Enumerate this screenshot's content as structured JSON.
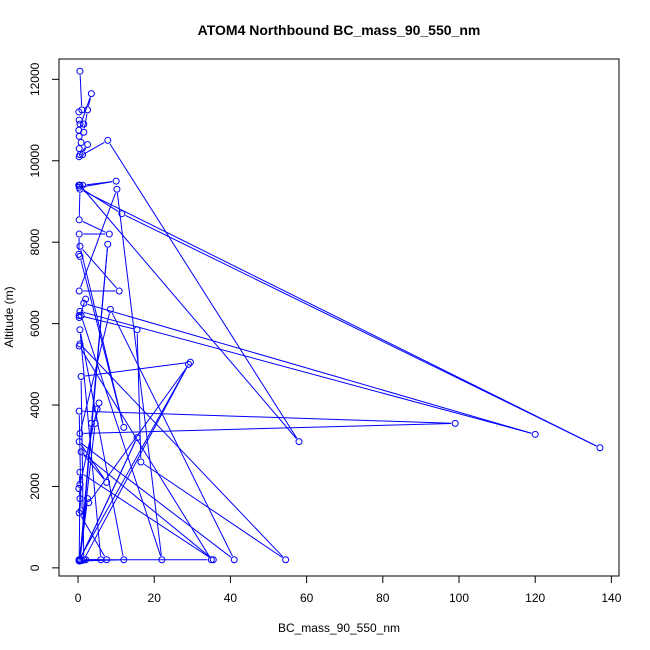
{
  "chart_data": {
    "type": "line",
    "title": "ATOM4 Northbound BC_mass_90_550_nm",
    "xlabel": "BC_mass_90_550_nm",
    "ylabel": "Altitude (m)",
    "xlim": [
      -5,
      142
    ],
    "ylim": [
      -200,
      12500
    ],
    "xticks": [
      "0",
      "20",
      "40",
      "60",
      "80",
      "100",
      "120",
      "140"
    ],
    "yticks": [
      "0",
      "2000",
      "4000",
      "6000",
      "8000",
      "10000",
      "12000"
    ],
    "xtick_values": [
      0,
      20,
      40,
      60,
      80,
      100,
      120,
      140
    ],
    "ytick_values": [
      0,
      2000,
      4000,
      6000,
      8000,
      10000,
      12000
    ],
    "grid": false,
    "legend": "none",
    "series": [
      {
        "color": "#0000ff",
        "marker": "open-circle",
        "x": [
          0.5,
          1,
          0.2,
          0.3,
          0.5,
          1.5,
          0.2,
          3.5,
          2.5,
          1.5,
          0.3,
          0.8,
          0.3,
          1.2,
          2.5,
          0.5,
          0.3,
          7.8,
          58,
          0.5,
          0.3,
          0.2,
          1.2,
          10,
          0.3,
          11.5,
          137,
          0.5,
          0.3,
          8.2,
          0.3,
          0.2,
          0.5,
          12,
          0.5,
          10.8,
          0.3,
          10.2,
          22,
          0.8,
          0.3,
          2,
          1.5,
          120,
          0.5,
          0.3,
          15.5,
          16.5,
          54.5,
          0.5,
          0.3,
          35,
          1.5,
          0.8,
          29.5,
          2.8,
          0.8,
          0.3,
          99,
          0.5,
          8.5,
          41,
          0.3,
          7.5,
          0.8,
          35.5,
          0.5,
          0.2,
          0.5,
          0.3,
          7.5,
          0.5,
          0.3,
          4.5,
          5.5,
          5,
          0.5,
          0.3,
          2.5,
          0.5,
          15.5,
          0.3,
          12,
          0.5,
          6,
          0.5,
          0.3,
          29,
          1.5,
          2,
          0.5,
          7.8,
          3.5,
          0.5,
          0.3,
          1,
          0.3
        ],
        "y": [
          12200,
          11250,
          11200,
          11000,
          10900,
          10900,
          10750,
          11650,
          11250,
          10700,
          10600,
          10450,
          10300,
          10150,
          10400,
          10150,
          10100,
          10500,
          3100,
          9400,
          9400,
          9400,
          9400,
          9500,
          9350,
          8700,
          2950,
          9300,
          8550,
          8200,
          8200,
          7700,
          7650,
          3450,
          7900,
          6800,
          6800,
          9300,
          200,
          6200,
          6150,
          6600,
          6500,
          3280,
          6300,
          6200,
          5850,
          2600,
          200,
          5500,
          5450,
          200,
          200,
          4700,
          5050,
          1600,
          1400,
          3850,
          3550,
          3300,
          6350,
          200,
          3100,
          2100,
          2850,
          200,
          2350,
          1950,
          1700,
          1350,
          200,
          200,
          180,
          3550,
          4050,
          3900,
          2050,
          200,
          1700,
          200,
          3200,
          170,
          200,
          5850,
          200,
          190,
          200,
          5000,
          200,
          200,
          170,
          7950,
          3550,
          200,
          190,
          180,
          170
        ]
      }
    ]
  }
}
